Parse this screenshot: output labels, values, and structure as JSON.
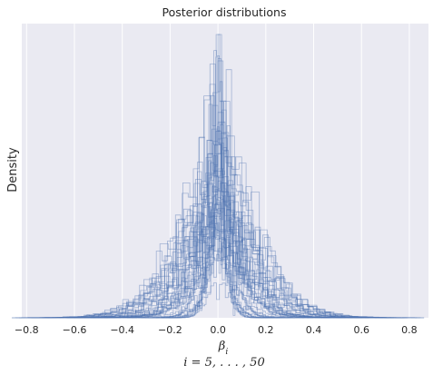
{
  "chart_data": {
    "type": "histogram",
    "title": "Posterior distributions",
    "xlabel": "β_i",
    "xlabel_parts": {
      "base": "β",
      "sub": "i"
    },
    "caption": "i = 5, . . . , 50",
    "ylabel": "Density",
    "xlim": [
      -0.82,
      0.88
    ],
    "x_ticks": [
      -0.8,
      -0.6,
      -0.4,
      -0.2,
      0.0,
      0.2,
      0.4,
      0.6,
      0.8
    ],
    "x_tick_labels": [
      "−0.8",
      "−0.6",
      "−0.4",
      "−0.2",
      "0.0",
      "0.2",
      "0.4",
      "0.6",
      "0.8"
    ],
    "y_ticks_shown": false,
    "grid": "vertical",
    "style": "step",
    "n_series": 46,
    "series_index_range": [
      5,
      50
    ],
    "center": 0.0,
    "peak_density_relative": 1.0,
    "colors": {
      "background": "#EAEAF2",
      "grid": "#FFFFFF",
      "line": "#4C72B0"
    }
  }
}
